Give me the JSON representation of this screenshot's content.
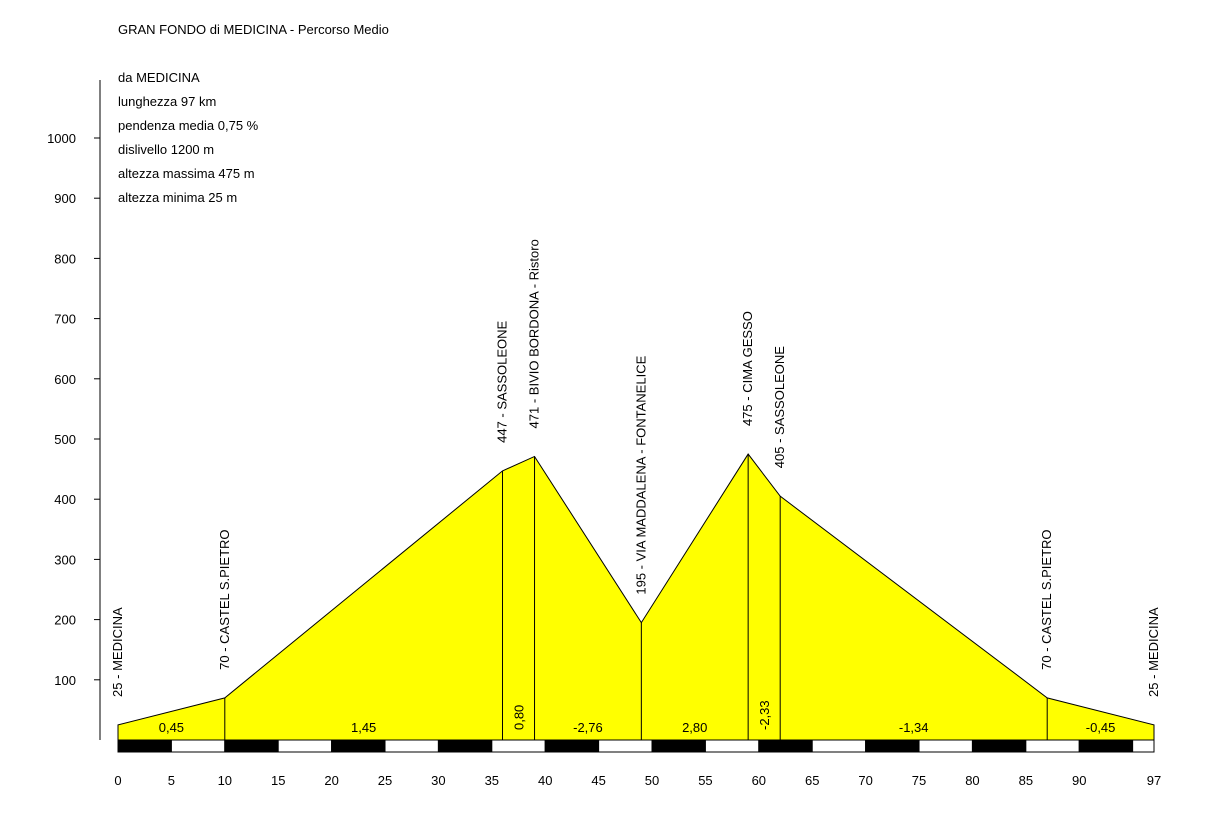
{
  "title": "GRAN FONDO di MEDICINA - Percorso Medio",
  "info": [
    "da MEDICINA",
    "lunghezza 97 km",
    "pendenza media 0,75 %",
    "dislivello 1200 m",
    "altezza massima 475 m",
    "altezza minima 25 m"
  ],
  "colors": {
    "fill": "#ffff00",
    "line": "#000000"
  },
  "chart_data": {
    "type": "area",
    "ylim": [
      0,
      1000
    ],
    "yticks": [
      100,
      200,
      300,
      400,
      500,
      600,
      700,
      800,
      900,
      1000
    ],
    "xlim": [
      0,
      97
    ],
    "xticks": [
      0,
      5,
      10,
      15,
      20,
      25,
      30,
      35,
      40,
      45,
      50,
      55,
      60,
      65,
      70,
      75,
      80,
      85,
      90,
      97
    ],
    "profile": [
      {
        "km": 0,
        "alt": 25,
        "label": "25 - MEDICINA"
      },
      {
        "km": 10,
        "alt": 70,
        "label": "70 - CASTEL S.PIETRO"
      },
      {
        "km": 36,
        "alt": 447,
        "label": "447 - SASSOLEONE"
      },
      {
        "km": 39,
        "alt": 471,
        "label": "471 - BIVIO BORDONA - Ristoro"
      },
      {
        "km": 49,
        "alt": 195,
        "label": "195 - VIA MADDALENA - FONTANELICE"
      },
      {
        "km": 59,
        "alt": 475,
        "label": "475 - CIMA GESSO"
      },
      {
        "km": 62,
        "alt": 405,
        "label": "405 - SASSOLEONE"
      },
      {
        "km": 87,
        "alt": 70,
        "label": "70 - CASTEL S.PIETRO"
      },
      {
        "km": 97,
        "alt": 25,
        "label": "25 - MEDICINA"
      }
    ],
    "gradients": [
      "0,45",
      "1,45",
      "0,80",
      "-2,76",
      "2,80",
      "-2,33",
      "-1,34",
      "-0,45"
    ]
  }
}
